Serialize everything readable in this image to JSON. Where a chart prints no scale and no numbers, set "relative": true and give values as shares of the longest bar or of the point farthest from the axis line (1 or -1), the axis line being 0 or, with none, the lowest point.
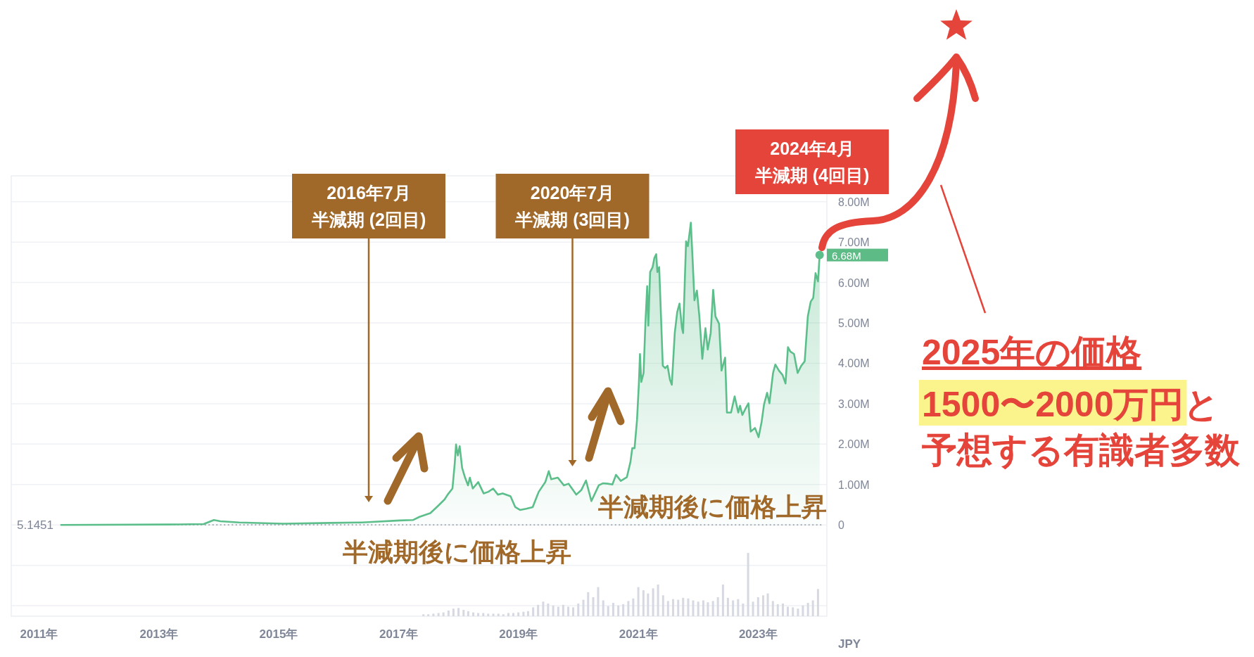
{
  "chart_data": [
    {
      "type": "area",
      "color": "#5cbf8b",
      "x": [
        "2011-05-16",
        "2013-03-01",
        "2013-10-01",
        "2013-12-02",
        "2014-01-10",
        "2014-05-05",
        "2015-01-30",
        "2015-11-10",
        "2016-05-22",
        "2016-07-01",
        "2017-01-08",
        "2017-03-29",
        "2017-05-08",
        "2017-07-13",
        "2017-08-29",
        "2017-10-08",
        "2017-10-27",
        "2017-11-25",
        "2017-12-09",
        "2017-12-17",
        "2017-12-28",
        "2018-01-08",
        "2018-01-23",
        "2018-02-10",
        "2018-02-28",
        "2018-03-11",
        "2018-03-29",
        "2018-05-01",
        "2018-06-03",
        "2018-07-02",
        "2018-07-31",
        "2018-08-29",
        "2018-09-27",
        "2018-11-14",
        "2018-12-13",
        "2019-01-11",
        "2019-02-17",
        "2019-03-29",
        "2019-05-05",
        "2019-06-14",
        "2019-07-05",
        "2019-07-20",
        "2019-08-29",
        "2019-10-05",
        "2019-11-03",
        "2019-12-20",
        "2020-01-19",
        "2020-02-17",
        "2020-03-21",
        "2020-05-05",
        "2020-05-30",
        "2020-06-28",
        "2020-07-27",
        "2020-08-18",
        "2020-09-16",
        "2020-10-23",
        "2020-11-14",
        "2020-11-25",
        "2020-12-09",
        "2020-12-24",
        "2021-01-04",
        "2021-01-11",
        "2021-01-19",
        "2021-02-02",
        "2021-02-13",
        "2021-02-24",
        "2021-03-03",
        "2021-03-14",
        "2021-03-29",
        "2021-04-09",
        "2021-04-20",
        "2021-04-27",
        "2021-05-08",
        "2021-05-16",
        "2021-05-30",
        "2021-06-14",
        "2021-06-28",
        "2021-07-13",
        "2021-07-24",
        "2021-08-11",
        "2021-08-26",
        "2021-09-09",
        "2021-09-24",
        "2021-10-01",
        "2021-10-19",
        "2021-10-30",
        "2021-11-10",
        "2021-11-17",
        "2021-11-28",
        "2021-12-09",
        "2021-12-24",
        "2022-01-08",
        "2022-01-26",
        "2022-02-14",
        "2022-02-28",
        "2022-03-18",
        "2022-04-02",
        "2022-04-16",
        "2022-05-08",
        "2022-05-23",
        "2022-06-14",
        "2022-06-25",
        "2022-07-20",
        "2022-08-11",
        "2022-09-02",
        "2022-09-13",
        "2022-09-27",
        "2022-10-19",
        "2022-11-03",
        "2022-11-17",
        "2022-12-13",
        "2023-01-04",
        "2023-01-22",
        "2023-02-06",
        "2023-02-25",
        "2023-03-11",
        "2023-04-02",
        "2023-04-16",
        "2023-05-08",
        "2023-05-30",
        "2023-06-17",
        "2023-07-02",
        "2023-07-17",
        "2023-08-08",
        "2023-08-30",
        "2023-09-21",
        "2023-10-12",
        "2023-10-31",
        "2023-11-18",
        "2023-12-03",
        "2023-12-17",
        "2024-01-01",
        "2024-01-11"
      ],
      "values": [
        0,
        10000,
        20000,
        120000,
        90000,
        60000,
        30000,
        50000,
        60000,
        70000,
        110000,
        120000,
        200000,
        290000,
        470000,
        630000,
        750000,
        900000,
        1520000,
        1990000,
        1720000,
        1950000,
        1410000,
        1170000,
        980000,
        1170000,
        900000,
        1060000,
        780000,
        820000,
        900000,
        750000,
        780000,
        710000,
        440000,
        370000,
        400000,
        440000,
        820000,
        1060000,
        1330000,
        1130000,
        1170000,
        980000,
        1020000,
        750000,
        860000,
        1100000,
        590000,
        980000,
        1030000,
        1020000,
        1000000,
        1240000,
        1090000,
        1180000,
        1560000,
        1900000,
        1900000,
        2600000,
        3470000,
        4230000,
        3540000,
        3760000,
        4980000,
        5910000,
        4930000,
        6260000,
        6380000,
        6610000,
        6700000,
        6260000,
        6380000,
        5510000,
        3940000,
        3880000,
        3940000,
        3590000,
        3470000,
        4750000,
        5270000,
        5480000,
        4870000,
        4750000,
        7020000,
        6900000,
        7250000,
        7480000,
        6550000,
        5560000,
        5800000,
        5160000,
        4110000,
        4870000,
        4340000,
        4750000,
        5820000,
        5160000,
        4980000,
        3820000,
        4140000,
        2780000,
        2780000,
        3180000,
        2780000,
        2950000,
        2720000,
        2900000,
        3010000,
        2310000,
        2400000,
        2170000,
        2540000,
        2980000,
        3270000,
        3010000,
        3760000,
        3970000,
        3820000,
        3710000,
        3500000,
        4400000,
        4290000,
        4230000,
        3760000,
        3940000,
        4050000,
        5160000,
        5530000,
        5620000,
        6230000,
        6030000,
        6680000
      ],
      "xlim": [
        "2010-07-16",
        "2024-02-24"
      ],
      "ylim": [
        -2260000,
        8640000
      ],
      "yticks": [
        {
          "value": -2000000,
          "label": null
        },
        {
          "value": -1000000,
          "label": null
        },
        0,
        {
          "value": 1000000,
          "label": "1.00M"
        },
        {
          "value": 2000000,
          "label": "2.00M"
        },
        {
          "value": 3000000,
          "label": "3.00M"
        },
        {
          "value": 4000000,
          "label": "4.00M"
        },
        {
          "value": 5000000,
          "label": "5.00M"
        },
        {
          "value": 6000000,
          "label": "6.00M"
        },
        {
          "value": 7000000,
          "label": "7.00M"
        },
        {
          "value": 8000000,
          "label": "8.00M"
        }
      ],
      "ylabel": "JPY",
      "grid": "y",
      "tick_labels": "y",
      "ref_lines": [
        {
          "axis": "y",
          "value": 5.1451,
          "label": "5.1451",
          "line_style": "dotted"
        }
      ],
      "annotations": [
        "2016年7月",
        "半減期 (2回目)",
        "2020年7月",
        "半減期 (3回目)",
        "2024年4月",
        "半減期 (4回目)",
        "半減期後に価格上昇",
        "半減期後に価格上昇",
        {
          "text": "6.68M",
          "x": "2024-01-11",
          "y": 6680000
        },
        "2025年の価格",
        "1500〜2000万円と",
        "予想する有識者多数"
      ]
    },
    {
      "type": "bar",
      "color": "#d6d9e2",
      "relative": true,
      "x": [
        "2017-06",
        "2017-07",
        "2017-08",
        "2017-09",
        "2017-10",
        "2017-11",
        "2017-12",
        "2018-01",
        "2018-02",
        "2018-03",
        "2018-04",
        "2018-05",
        "2018-06",
        "2018-07",
        "2018-08",
        "2018-09",
        "2018-10",
        "2018-11",
        "2018-12",
        "2019-01",
        "2019-02",
        "2019-03",
        "2019-04",
        "2019-05",
        "2019-06",
        "2019-07",
        "2019-08",
        "2019-09",
        "2019-10",
        "2019-11",
        "2019-12",
        "2020-01",
        "2020-02",
        "2020-03",
        "2020-04",
        "2020-05",
        "2020-06",
        "2020-07",
        "2020-08",
        "2020-09",
        "2020-10",
        "2020-11",
        "2020-12",
        "2021-01",
        "2021-02",
        "2021-03",
        "2021-04",
        "2021-05",
        "2021-06",
        "2021-07",
        "2021-08",
        "2021-09",
        "2021-10",
        "2021-11",
        "2021-12",
        "2022-01",
        "2022-02",
        "2022-03",
        "2022-04",
        "2022-05",
        "2022-06",
        "2022-07",
        "2022-08",
        "2022-09",
        "2022-10",
        "2022-11",
        "2022-12",
        "2023-01",
        "2023-02",
        "2023-03",
        "2023-04",
        "2023-05",
        "2023-06",
        "2023-07",
        "2023-08",
        "2023-09",
        "2023-10",
        "2023-11",
        "2023-12",
        "2024-01"
      ],
      "values": [
        0.03,
        0.03,
        0.04,
        0.05,
        0.06,
        0.09,
        0.12,
        0.13,
        0.1,
        0.08,
        0.06,
        0.05,
        0.05,
        0.04,
        0.04,
        0.04,
        0.03,
        0.05,
        0.05,
        0.06,
        0.07,
        0.08,
        0.14,
        0.18,
        0.23,
        0.2,
        0.17,
        0.15,
        0.18,
        0.15,
        0.14,
        0.2,
        0.26,
        0.38,
        0.3,
        0.46,
        0.25,
        0.16,
        0.21,
        0.17,
        0.19,
        0.24,
        0.28,
        0.46,
        0.41,
        0.36,
        0.44,
        0.5,
        0.33,
        0.24,
        0.27,
        0.26,
        0.29,
        0.28,
        0.25,
        0.23,
        0.25,
        0.22,
        0.24,
        0.3,
        0.5,
        0.29,
        0.25,
        0.27,
        0.2,
        1,
        0.23,
        0.3,
        0.33,
        0.36,
        0.24,
        0.19,
        0.2,
        0.15,
        0.14,
        0.12,
        0.17,
        0.21,
        0.25,
        0.43
      ],
      "xlim": [
        "2010-07-16",
        "2024-02-24"
      ],
      "xticks": [
        {
          "value": "2011",
          "label": "2011年"
        },
        {
          "value": "2013",
          "label": "2013年"
        },
        {
          "value": "2015",
          "label": "2015年"
        },
        {
          "value": "2017",
          "label": "2017年"
        },
        {
          "value": "2019",
          "label": "2019年"
        },
        {
          "value": "2021",
          "label": "2021年"
        },
        {
          "value": "2023",
          "label": "2023年"
        }
      ],
      "tick_labels": "x"
    }
  ]
}
